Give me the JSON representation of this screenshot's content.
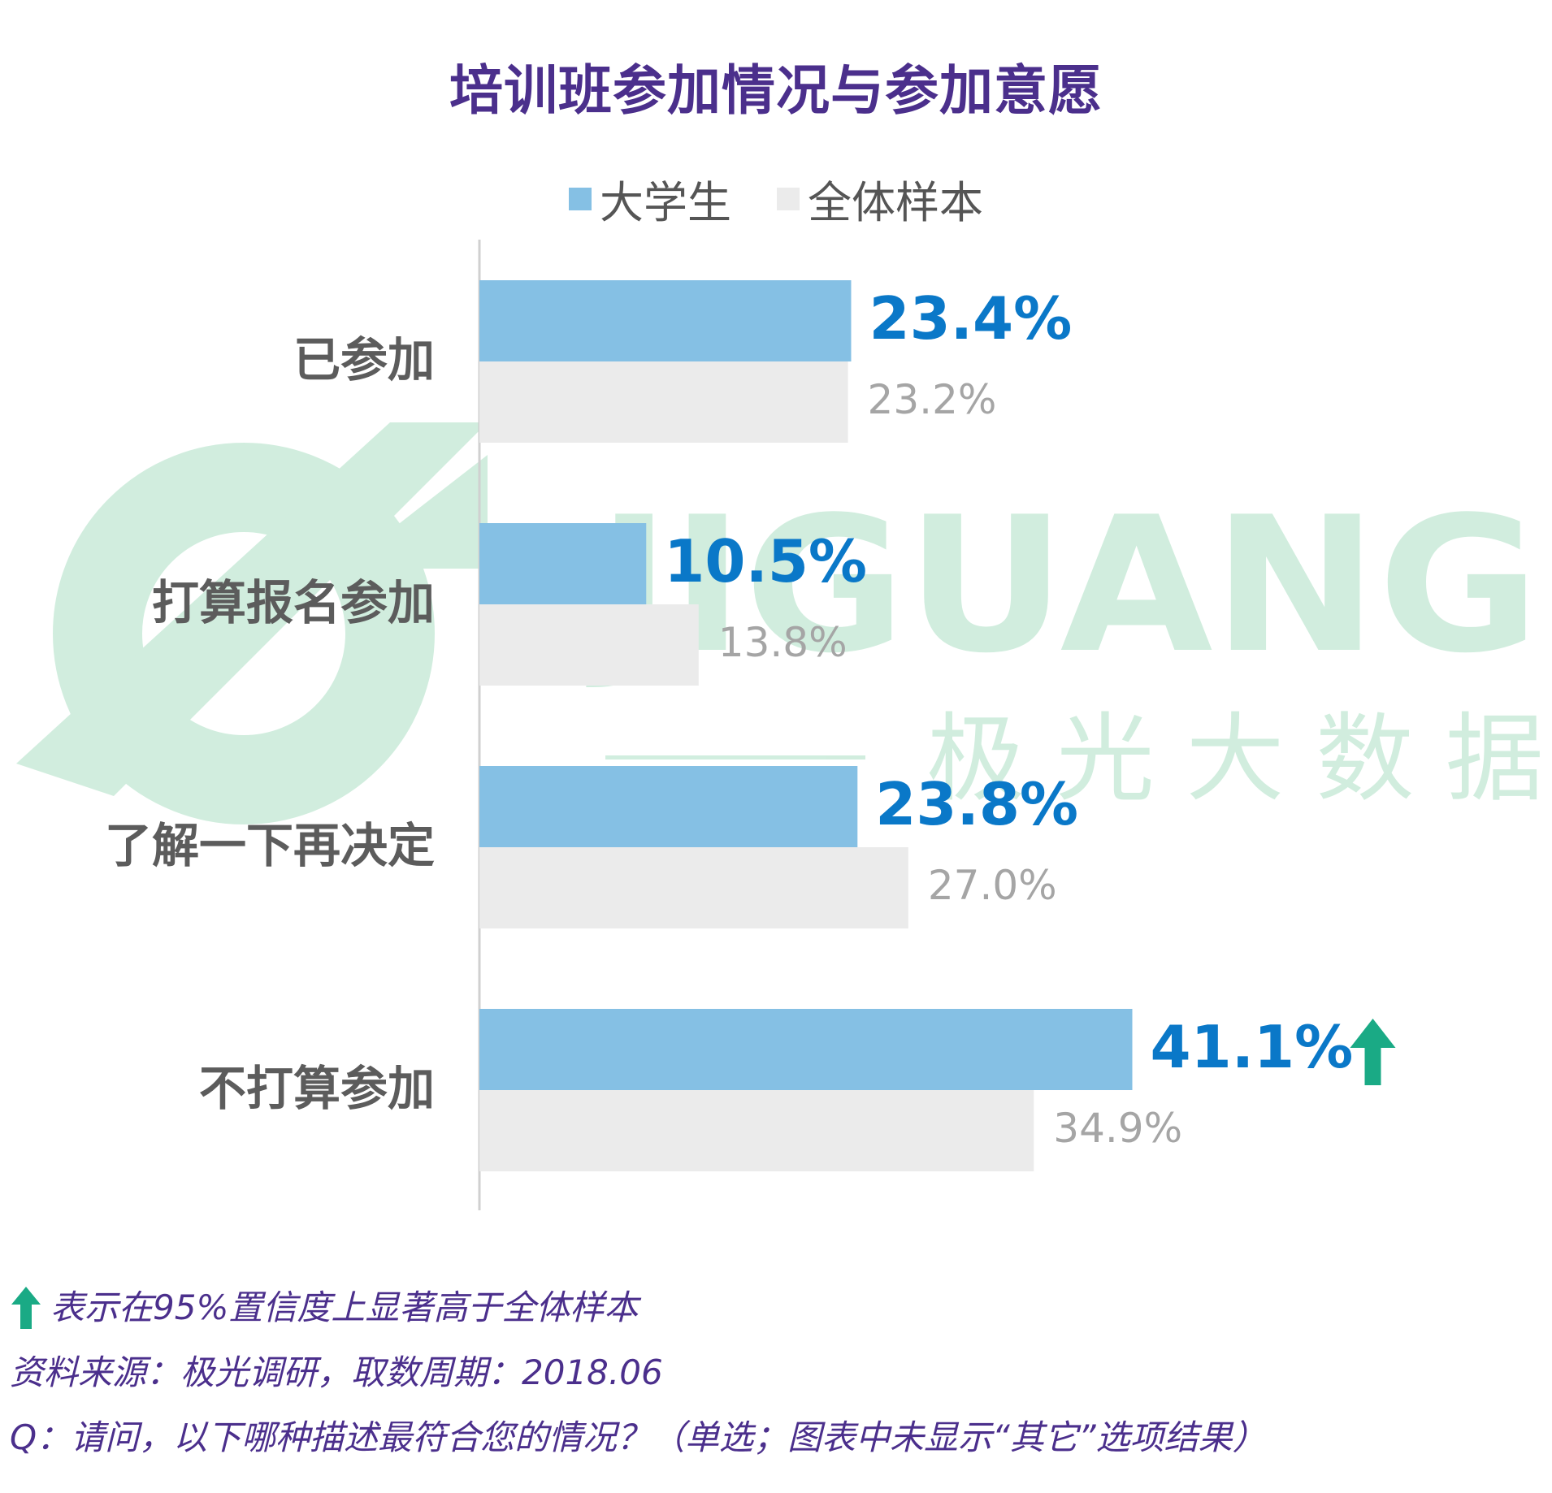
{
  "chart_data": {
    "type": "bar",
    "orientation": "horizontal",
    "title": "培训班参加情况与参加意愿",
    "categories": [
      "已参加",
      "打算报名参加",
      "了解一下再决定",
      "不打算参加"
    ],
    "series": [
      {
        "name": "大学生",
        "values": [
          23.4,
          10.5,
          23.8,
          41.1
        ],
        "labels": [
          "23.4%",
          "10.5%",
          "23.8%",
          "41.1%"
        ],
        "color": "#85c0e4",
        "label_color": "#0a78c8"
      },
      {
        "name": "全体样本",
        "values": [
          23.2,
          13.8,
          27.0,
          34.9
        ],
        "labels": [
          "23.2%",
          "13.8%",
          "27.0%",
          "34.9%"
        ],
        "color": "#ebebeb",
        "label_color": "#a5a5a5"
      }
    ],
    "xlim": [
      0,
      45
    ],
    "legend_position": "top-center",
    "significant_up": [
      false,
      false,
      false,
      true
    ],
    "significance_color": "#1aaa85"
  },
  "watermark": {
    "brand": "JIGUANG",
    "sub": "极 光 大 数 据",
    "color": "#c2e8d4"
  },
  "footnotes": {
    "significance": "表示在95%置信度上显著高于全体样本",
    "source": "资料来源：极光调研，取数周期：2018.06",
    "question": "Q：请问，以下哪种描述最符合您的情况？（单选；图表中未显示“其它”选项结果）"
  }
}
